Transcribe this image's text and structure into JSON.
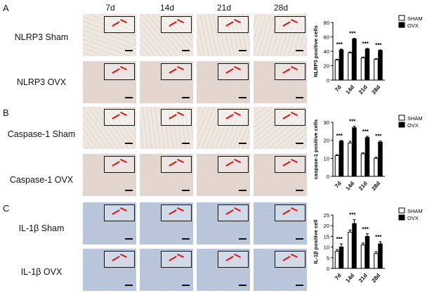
{
  "panels": [
    "A",
    "B",
    "C"
  ],
  "columns": [
    "7d",
    "14d",
    "21d",
    "28d"
  ],
  "rows": [
    {
      "label": "NLRP3  Sham",
      "tint": "light"
    },
    {
      "label": "NLRP3  OVX",
      "tint": "medium"
    },
    {
      "label": "Caspase-1  Sham",
      "tint": "light"
    },
    {
      "label": "Caspase-1  OVX",
      "tint": "medium"
    },
    {
      "label": "IL-1β  Sham",
      "tint": "blue"
    },
    {
      "label": "IL-1β  OVX",
      "tint": "blue"
    }
  ],
  "colors": {
    "tissue_light": "#efe8e0",
    "tissue_medium": "#e2d6cf",
    "tissue_blue": "#b8c6dc",
    "inset_arrow": "#e01010"
  },
  "chart_data": [
    {
      "type": "bar",
      "categories": [
        "7d",
        "14d",
        "21d",
        "28d"
      ],
      "ylabel": "NLRP3 positive cells",
      "ylim": [
        0,
        80
      ],
      "yticks": [
        0,
        20,
        40,
        60,
        80
      ],
      "series": [
        {
          "name": "SHAM",
          "values": [
            28,
            38,
            31,
            29
          ],
          "errors": [
            1,
            1,
            1,
            1
          ],
          "fill": "#ffffff"
        },
        {
          "name": "OVX",
          "values": [
            42,
            57,
            43,
            41
          ],
          "errors": [
            1,
            1,
            1,
            1
          ],
          "fill": "#000000"
        }
      ],
      "annotations": [
        "***",
        "***",
        "***",
        "***"
      ],
      "legend": "top-right"
    },
    {
      "type": "bar",
      "categories": [
        "7d",
        "14d",
        "21d",
        "28d"
      ],
      "ylabel": "caspase-1 positive cells",
      "ylim": [
        0,
        30
      ],
      "yticks": [
        0,
        10,
        20,
        30
      ],
      "series": [
        {
          "name": "SHAM",
          "values": [
            11.5,
            18.5,
            12.5,
            10
          ],
          "errors": [
            0.5,
            1,
            0.6,
            0.6
          ],
          "fill": "#ffffff"
        },
        {
          "name": "OVX",
          "values": [
            19.5,
            27,
            21.5,
            19
          ],
          "errors": [
            0.4,
            0.8,
            0.7,
            0.6
          ],
          "fill": "#000000"
        }
      ],
      "annotations": [
        "***",
        "***",
        "***",
        "***"
      ],
      "legend": "top-right"
    },
    {
      "type": "bar",
      "categories": [
        "7d",
        "14d",
        "21d",
        "28d"
      ],
      "ylabel": "IL-1β positive cell",
      "ylim": [
        0,
        25
      ],
      "yticks": [
        0,
        5,
        10,
        15,
        20,
        25
      ],
      "series": [
        {
          "name": "SHAM",
          "values": [
            8,
            17,
            11,
            7
          ],
          "errors": [
            0.8,
            1,
            0.9,
            0.8
          ],
          "fill": "#ffffff"
        },
        {
          "name": "OVX",
          "values": [
            10,
            21,
            15,
            11.5
          ],
          "errors": [
            1.5,
            1.8,
            1.2,
            1
          ],
          "fill": "#000000"
        }
      ],
      "annotations": [
        "***",
        "***",
        "***",
        "***"
      ],
      "legend": "top-right"
    }
  ]
}
